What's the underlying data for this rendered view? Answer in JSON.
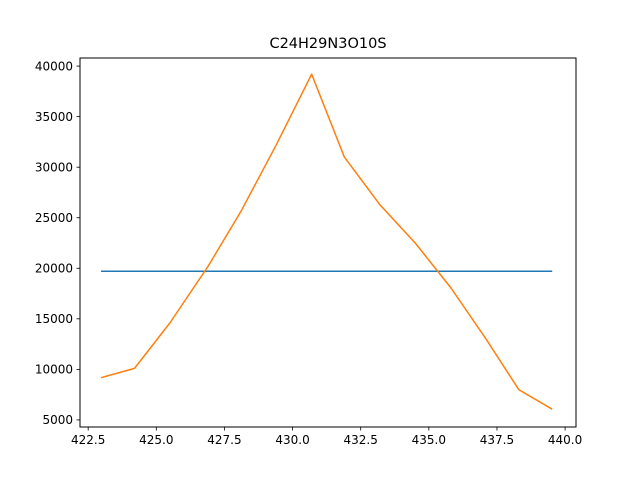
{
  "chart_data": {
    "type": "line",
    "title": "C24H29N3O10S",
    "xlabel": "",
    "ylabel": "",
    "xlim": [
      422.2,
      440.4
    ],
    "ylim": [
      4300,
      40800
    ],
    "xticks": [
      422.5,
      425.0,
      427.5,
      430.0,
      432.5,
      435.0,
      437.5,
      440.0
    ],
    "xtick_labels": [
      "422.5",
      "425.0",
      "427.5",
      "430.0",
      "432.5",
      "435.0",
      "437.5",
      "440.0"
    ],
    "yticks": [
      5000,
      10000,
      15000,
      20000,
      25000,
      30000,
      35000,
      40000
    ],
    "ytick_labels": [
      "5000",
      "10000",
      "15000",
      "20000",
      "25000",
      "30000",
      "35000",
      "40000"
    ],
    "grid": false,
    "legend": "none",
    "series": [
      {
        "color": "#1f77b4",
        "x": [
          423.0,
          439.5
        ],
        "y": [
          19700,
          19700
        ]
      },
      {
        "color": "#ff7f0e",
        "x": [
          423.0,
          424.2,
          425.5,
          426.9,
          428.1,
          429.4,
          430.7,
          431.9,
          433.2,
          434.5,
          435.8,
          437.1,
          438.3,
          439.5
        ],
        "y": [
          9200,
          10100,
          14600,
          20200,
          25600,
          32200,
          39200,
          31000,
          26300,
          22500,
          18100,
          13000,
          8000,
          6100
        ]
      }
    ]
  }
}
